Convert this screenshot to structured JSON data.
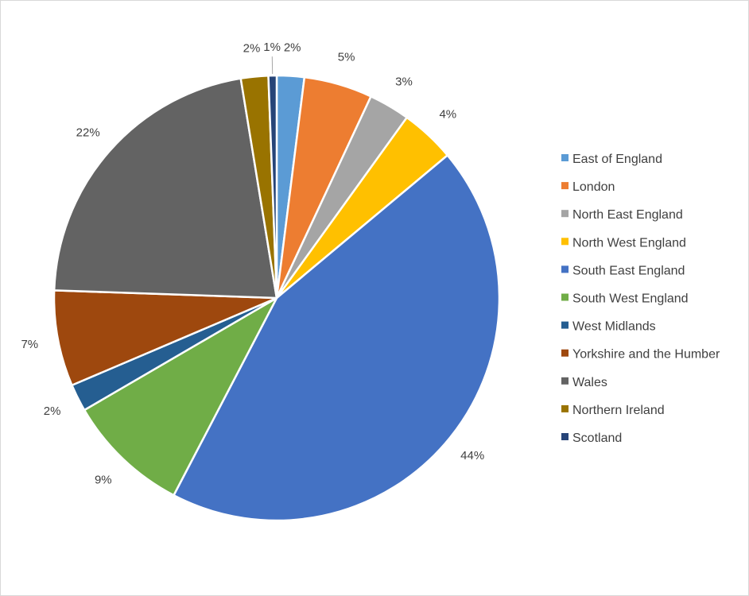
{
  "chart_data": {
    "type": "pie",
    "title": "",
    "legend_position": "right",
    "slices": [
      {
        "name": "East of England",
        "value": 2,
        "label": "2%",
        "color": "#5B9BD5"
      },
      {
        "name": "London",
        "value": 5,
        "label": "5%",
        "color": "#ED7D31"
      },
      {
        "name": "North East England",
        "value": 3,
        "label": "3%",
        "color": "#A5A5A5"
      },
      {
        "name": "North West England",
        "value": 4,
        "label": "4%",
        "color": "#FFC000"
      },
      {
        "name": "South East England",
        "value": 44,
        "label": "44%",
        "color": "#4472C4"
      },
      {
        "name": "South West England",
        "value": 9,
        "label": "9%",
        "color": "#70AD47"
      },
      {
        "name": "West Midlands",
        "value": 2,
        "label": "2%",
        "color": "#255E91"
      },
      {
        "name": "Yorkshire and the Humber",
        "value": 7,
        "label": "7%",
        "color": "#9E480E"
      },
      {
        "name": "Wales",
        "value": 22,
        "label": "22%",
        "color": "#636363"
      },
      {
        "name": "Northern Ireland",
        "value": 2,
        "label": "2%",
        "color": "#997300"
      },
      {
        "name": "Scotland",
        "value": 0.6,
        "label": "1%",
        "color": "#264478"
      }
    ]
  }
}
